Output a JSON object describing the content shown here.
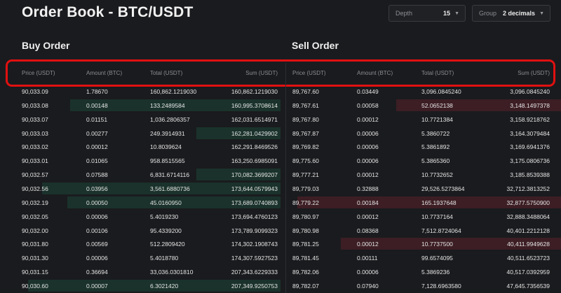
{
  "title": "Order Book - BTC/USDT",
  "controls": {
    "depth_label": "Depth",
    "depth_value": "15",
    "group_label": "Group",
    "group_value": "2 decimals"
  },
  "buy": {
    "title": "Buy Order",
    "columns": [
      "Price (USDT)",
      "Amount (BTC)",
      "Total (USDT)",
      "Sum (USDT)"
    ],
    "rows": [
      {
        "price": "90,033.09",
        "amount": "1.78670",
        "total": "160,862.1219030",
        "sum": "160,862.1219030",
        "bar": 0.0
      },
      {
        "price": "90,033.08",
        "amount": "0.00148",
        "total": "133.2489584",
        "sum": "160,995.3708614",
        "bar": 0.75
      },
      {
        "price": "90,033.07",
        "amount": "0.01151",
        "total": "1,036.2806357",
        "sum": "162,031.6514971",
        "bar": 0.0
      },
      {
        "price": "90,033.03",
        "amount": "0.00277",
        "total": "249.3914931",
        "sum": "162,281.0429902",
        "bar": 0.3
      },
      {
        "price": "90,033.02",
        "amount": "0.00012",
        "total": "10.8039624",
        "sum": "162,291.8469526",
        "bar": 0.0
      },
      {
        "price": "90,033.01",
        "amount": "0.01065",
        "total": "958.8515565",
        "sum": "163,250.6985091",
        "bar": 0.0
      },
      {
        "price": "90,032.57",
        "amount": "0.07588",
        "total": "6,831.6714116",
        "sum": "170,082.3699207",
        "bar": 0.3
      },
      {
        "price": "90,032.56",
        "amount": "0.03956",
        "total": "3,561.6880736",
        "sum": "173,644.0579943",
        "bar": 0.85
      },
      {
        "price": "90,032.19",
        "amount": "0.00050",
        "total": "45.0160950",
        "sum": "173,689.0740893",
        "bar": 0.76
      },
      {
        "price": "90,032.05",
        "amount": "0.00006",
        "total": "5.4019230",
        "sum": "173,694.4760123",
        "bar": 0.0
      },
      {
        "price": "90,032.00",
        "amount": "0.00106",
        "total": "95.4339200",
        "sum": "173,789.9099323",
        "bar": 0.0
      },
      {
        "price": "90,031.80",
        "amount": "0.00569",
        "total": "512.2809420",
        "sum": "174,302.1908743",
        "bar": 0.0
      },
      {
        "price": "90,031.30",
        "amount": "0.00006",
        "total": "5.4018780",
        "sum": "174,307.5927523",
        "bar": 0.0
      },
      {
        "price": "90,031.15",
        "amount": "0.36694",
        "total": "33,036.0301810",
        "sum": "207,343.6229333",
        "bar": 0.0
      },
      {
        "price": "90,030.60",
        "amount": "0.00007",
        "total": "6.3021420",
        "sum": "207,349.9250753",
        "bar": 0.9
      }
    ]
  },
  "sell": {
    "title": "Sell Order",
    "columns": [
      "Price (USDT)",
      "Amount (BTC)",
      "Total (USDT)",
      "Sum (USDT)"
    ],
    "rows": [
      {
        "price": "89,767.60",
        "amount": "0.03449",
        "total": "3,096.0845240",
        "sum": "3,096.0845240",
        "bar": 0.0
      },
      {
        "price": "89,767.61",
        "amount": "0.00058",
        "total": "52.0652138",
        "sum": "3,148.1497378",
        "bar": 0.6
      },
      {
        "price": "89,767.80",
        "amount": "0.00012",
        "total": "10.7721384",
        "sum": "3,158.9218762",
        "bar": 0.0
      },
      {
        "price": "89,767.87",
        "amount": "0.00006",
        "total": "5.3860722",
        "sum": "3,164.3079484",
        "bar": 0.0
      },
      {
        "price": "89,769.82",
        "amount": "0.00006",
        "total": "5.3861892",
        "sum": "3,169.6941376",
        "bar": 0.0
      },
      {
        "price": "89,775.60",
        "amount": "0.00006",
        "total": "5.3865360",
        "sum": "3,175.0806736",
        "bar": 0.0
      },
      {
        "price": "89,777.21",
        "amount": "0.00012",
        "total": "10.7732652",
        "sum": "3,185.8539388",
        "bar": 0.0
      },
      {
        "price": "89,779.03",
        "amount": "0.32888",
        "total": "29,526.5273864",
        "sum": "32,712.3813252",
        "bar": 0.0
      },
      {
        "price": "89,779.22",
        "amount": "0.00184",
        "total": "165.1937648",
        "sum": "32,877.5750900",
        "bar": 0.96
      },
      {
        "price": "89,780.97",
        "amount": "0.00012",
        "total": "10.7737164",
        "sum": "32,888.3488064",
        "bar": 0.0
      },
      {
        "price": "89,780.98",
        "amount": "0.08368",
        "total": "7,512.8724064",
        "sum": "40,401.2212128",
        "bar": 0.0
      },
      {
        "price": "89,781.25",
        "amount": "0.00012",
        "total": "10.7737500",
        "sum": "40,411.9949628",
        "bar": 0.8
      },
      {
        "price": "89,781.45",
        "amount": "0.00111",
        "total": "99.6574095",
        "sum": "40,511.6523723",
        "bar": 0.0
      },
      {
        "price": "89,782.06",
        "amount": "0.00006",
        "total": "5.3869236",
        "sum": "40,517.0392959",
        "bar": 0.0
      },
      {
        "price": "89,782.07",
        "amount": "0.07940",
        "total": "7,128.6963580",
        "sum": "47,645.7356539",
        "bar": 0.0
      }
    ]
  }
}
